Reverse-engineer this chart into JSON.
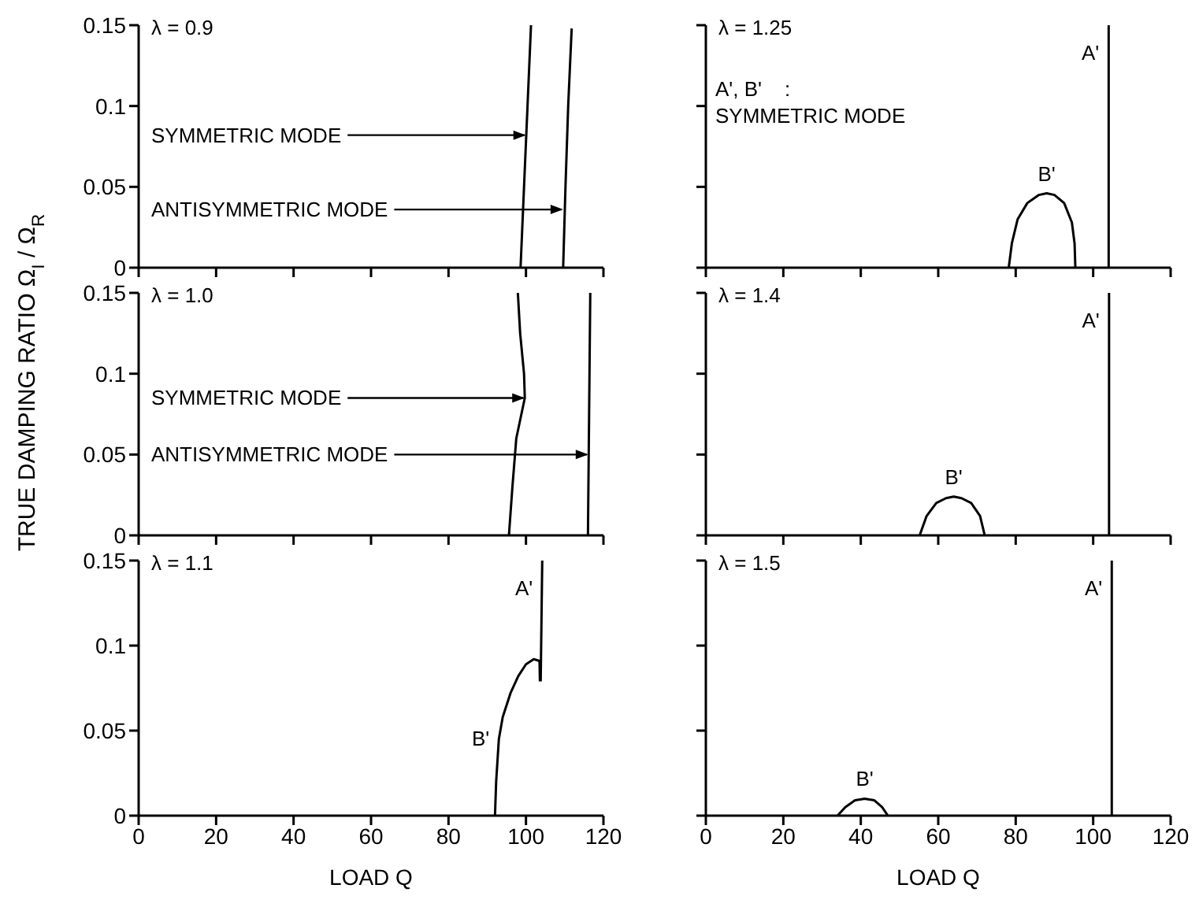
{
  "chart_data": [
    {
      "type": "line",
      "title": "λ = 0.9",
      "marker": "none",
      "tick_labels": "y",
      "xlim": [
        0,
        120
      ],
      "xticks": [
        0,
        20,
        40,
        60,
        80,
        100,
        120
      ],
      "ylim": [
        0,
        0.15
      ],
      "yticks": [
        0,
        0.05,
        0.1,
        0.15
      ],
      "series": [
        {
          "color": "#000000",
          "x": [
            98.6,
            99.5,
            100.4,
            101.3
          ],
          "values": [
            0,
            0.05,
            0.1,
            0.15
          ]
        },
        {
          "color": "#000000",
          "x": [
            109.6,
            110.2,
            110.9,
            111.8
          ],
          "values": [
            0,
            0.05,
            0.1,
            0.148
          ]
        }
      ],
      "annotations": [
        {
          "text": "SYMMETRIC MODE",
          "x": 100.0,
          "y": 0.082
        },
        {
          "text": "ANTISYMMETRIC MODE",
          "x": 109.6,
          "y": 0.036
        }
      ]
    },
    {
      "type": "line",
      "title": "λ = 1.25",
      "marker": "none",
      "tick_labels": false,
      "xlim": [
        0,
        120
      ],
      "xticks": [
        0,
        20,
        40,
        60,
        80,
        100,
        120
      ],
      "ylim": [
        0,
        0.15
      ],
      "yticks": [
        0,
        0.05,
        0.1,
        0.15
      ],
      "series": [
        {
          "name": "A'",
          "color": "#000000",
          "x": [
            104,
            104
          ],
          "values": [
            0,
            0.15
          ]
        },
        {
          "name": "B'",
          "color": "#000000",
          "x": [
            78.2,
            79,
            80.5,
            83,
            86,
            88,
            90,
            92.5,
            94.5,
            95.2,
            95.4
          ],
          "values": [
            0,
            0.015,
            0.03,
            0.04,
            0.045,
            0.046,
            0.045,
            0.04,
            0.028,
            0.015,
            0
          ]
        }
      ],
      "annotations": [
        "A', B'    :\nSYMMETRIC MODE"
      ]
    },
    {
      "type": "line",
      "title": "λ = 1.0",
      "ylabel": "TRUE DAMPING RATIO     Ω$_{I}$ / Ω$_{R}$",
      "marker": "none",
      "tick_labels": "y",
      "xlim": [
        0,
        120
      ],
      "xticks": [
        0,
        20,
        40,
        60,
        80,
        100,
        120
      ],
      "ylim": [
        0,
        0.15
      ],
      "yticks": [
        0,
        0.05,
        0.1,
        0.15
      ],
      "series": [
        {
          "color": "#000000",
          "x": [
            95.6,
            96.5,
            97.5,
            99.7,
            99.5,
            98.5,
            97.9
          ],
          "values": [
            0,
            0.03,
            0.06,
            0.085,
            0.1,
            0.125,
            0.15
          ]
        },
        {
          "color": "#000000",
          "x": [
            116,
            116.3,
            116.6
          ],
          "values": [
            0,
            0.075,
            0.15
          ]
        }
      ],
      "annotations": [
        {
          "text": "SYMMETRIC MODE",
          "x": 99.7,
          "y": 0.085
        },
        {
          "text": "ANTISYMMETRIC MODE",
          "x": 116.1,
          "y": 0.05
        }
      ]
    },
    {
      "type": "line",
      "title": "λ = 1.4",
      "marker": "none",
      "tick_labels": false,
      "xlim": [
        0,
        120
      ],
      "xticks": [
        0,
        20,
        40,
        60,
        80,
        100,
        120
      ],
      "ylim": [
        0,
        0.15
      ],
      "yticks": [
        0,
        0.05,
        0.1,
        0.15
      ],
      "series": [
        {
          "name": "A'",
          "color": "#000000",
          "x": [
            104.1,
            104.1
          ],
          "values": [
            0,
            0.15
          ]
        },
        {
          "name": "B'",
          "color": "#000000",
          "x": [
            55.2,
            57,
            59.5,
            62,
            64,
            66,
            68.5,
            70.8,
            72
          ],
          "values": [
            0,
            0.012,
            0.02,
            0.023,
            0.024,
            0.023,
            0.02,
            0.012,
            0
          ]
        }
      ]
    },
    {
      "type": "line",
      "title": "λ = 1.1",
      "xlabel": "LOAD Q",
      "marker": "none",
      "xlim": [
        0,
        120
      ],
      "xticks": [
        0,
        20,
        40,
        60,
        80,
        100,
        120
      ],
      "ylim": [
        0,
        0.15
      ],
      "yticks": [
        0,
        0.05,
        0.1,
        0.15
      ],
      "series": [
        {
          "name": "A'",
          "color": "#000000",
          "x": [
            103.8,
            104.2
          ],
          "values": [
            0.079,
            0.15
          ]
        },
        {
          "name": "B'",
          "color": "#000000",
          "x": [
            92,
            92.3,
            93,
            94,
            96,
            98,
            100,
            102,
            103.5,
            103.6
          ],
          "values": [
            0,
            0.02,
            0.045,
            0.058,
            0.072,
            0.082,
            0.089,
            0.092,
            0.091,
            0.079
          ]
        }
      ]
    },
    {
      "type": "line",
      "title": "λ = 1.5",
      "xlabel": "LOAD Q",
      "marker": "none",
      "tick_labels": "x",
      "xlim": [
        0,
        120
      ],
      "xticks": [
        0,
        20,
        40,
        60,
        80,
        100,
        120
      ],
      "ylim": [
        0,
        0.15
      ],
      "yticks": [
        0,
        0.05,
        0.1,
        0.15
      ],
      "series": [
        {
          "name": "A'",
          "color": "#000000",
          "x": [
            104.8,
            104.8
          ],
          "values": [
            0,
            0.15
          ]
        },
        {
          "name": "B'",
          "color": "#000000",
          "x": [
            34,
            36,
            38.5,
            41,
            43.5,
            45.5,
            47
          ],
          "values": [
            0,
            0.005,
            0.009,
            0.01,
            0.009,
            0.005,
            0
          ]
        }
      ]
    }
  ]
}
